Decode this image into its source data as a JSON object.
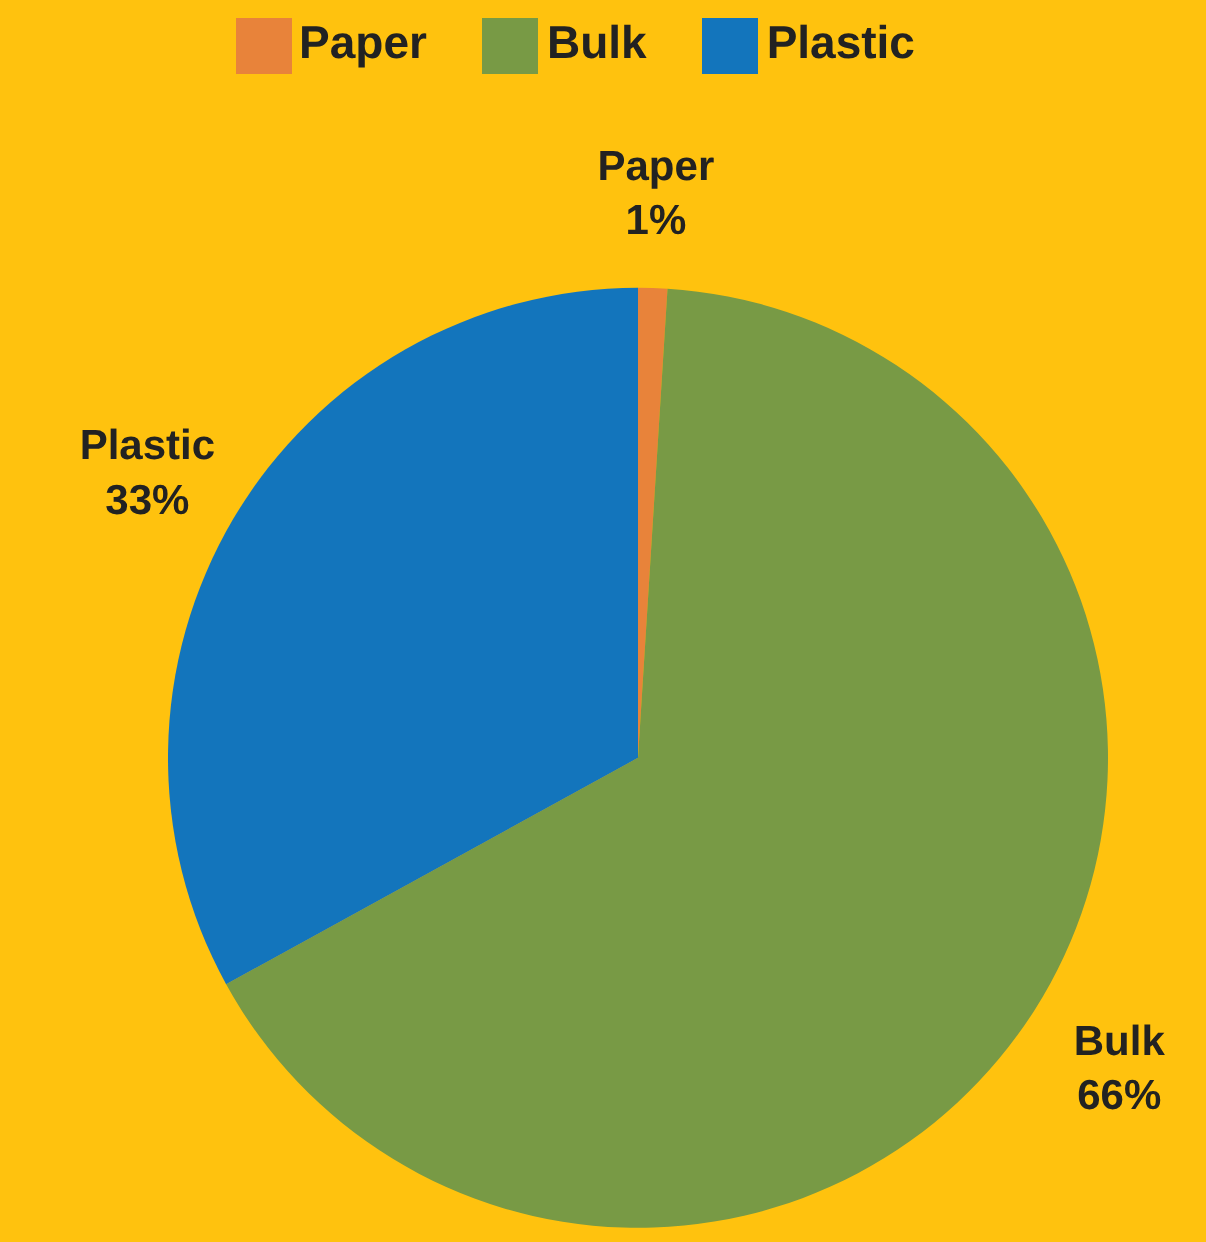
{
  "chart_data": {
    "type": "pie",
    "categories": [
      "Paper",
      "Bulk",
      "Plastic"
    ],
    "values": [
      1,
      66,
      33
    ],
    "colors": [
      "#e8833a",
      "#789a45",
      "#1375bc"
    ],
    "value_labels": [
      "1%",
      "66%",
      "33%"
    ],
    "legend": "top"
  }
}
